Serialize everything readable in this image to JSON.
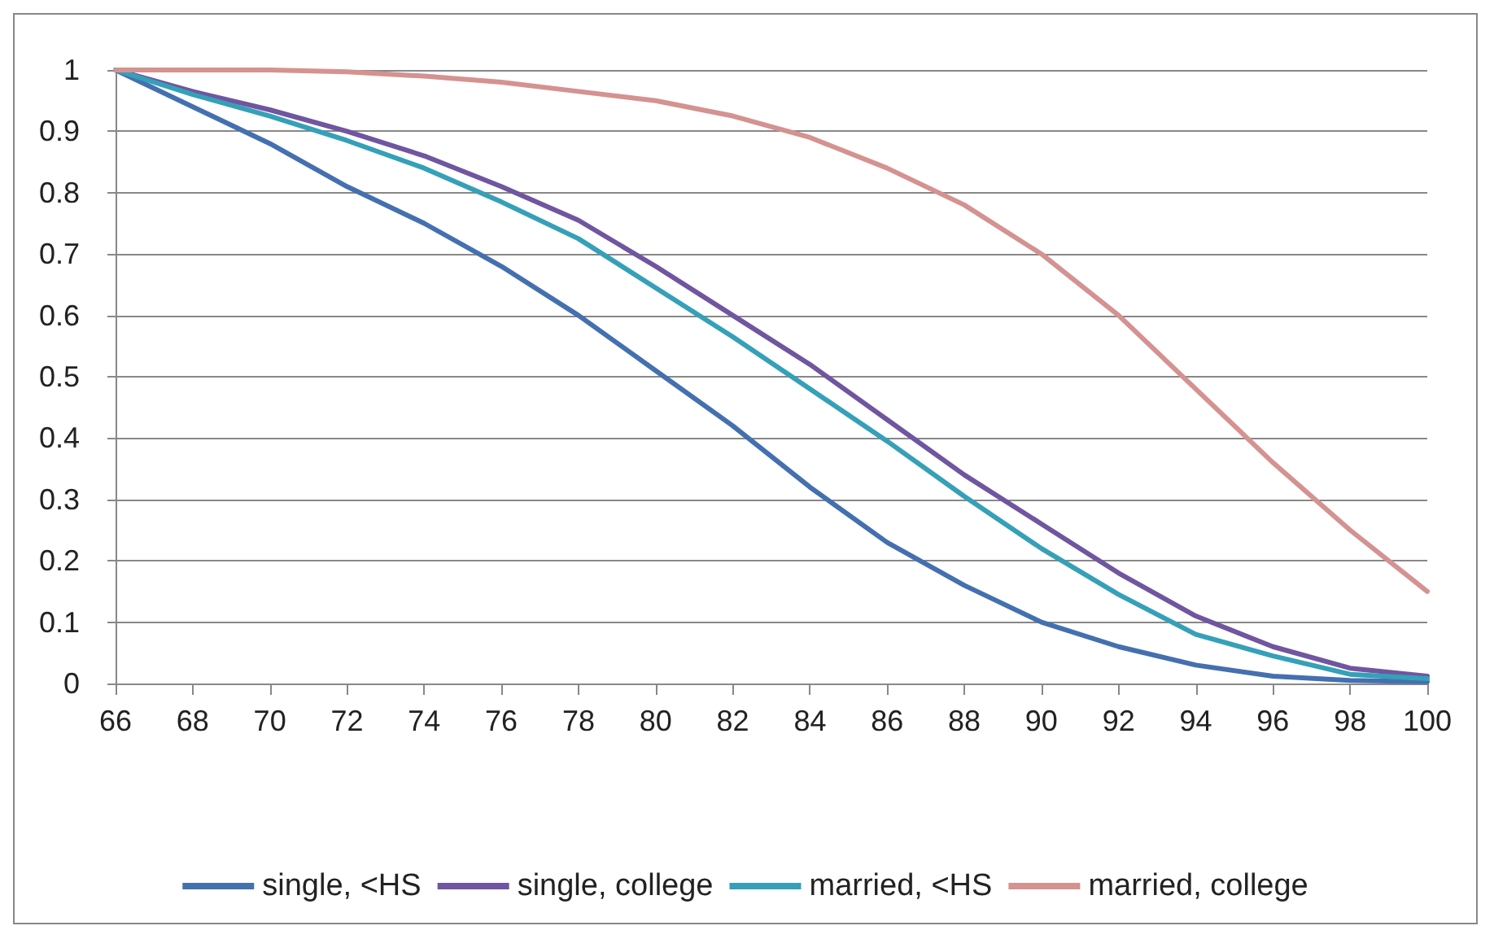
{
  "chart_data": {
    "type": "line",
    "x": [
      66,
      68,
      70,
      72,
      74,
      76,
      78,
      80,
      82,
      84,
      86,
      88,
      90,
      92,
      94,
      96,
      98,
      100
    ],
    "series": [
      {
        "name": "single, <HS",
        "color": "#4470b0",
        "values": [
          1,
          0.94,
          0.88,
          0.81,
          0.75,
          0.68,
          0.6,
          0.51,
          0.42,
          0.32,
          0.23,
          0.16,
          0.1,
          0.06,
          0.03,
          0.012,
          0.005,
          0.003
        ]
      },
      {
        "name": "single, college",
        "color": "#7055a0",
        "values": [
          1,
          0.965,
          0.935,
          0.9,
          0.86,
          0.81,
          0.755,
          0.68,
          0.6,
          0.52,
          0.43,
          0.34,
          0.26,
          0.18,
          0.11,
          0.06,
          0.025,
          0.012
        ]
      },
      {
        "name": "married, <HS",
        "color": "#35a0b8",
        "values": [
          1,
          0.96,
          0.925,
          0.885,
          0.84,
          0.785,
          0.725,
          0.645,
          0.565,
          0.48,
          0.395,
          0.305,
          0.22,
          0.145,
          0.08,
          0.045,
          0.015,
          0.008
        ]
      },
      {
        "name": "married, college",
        "color": "#d49290",
        "values": [
          1,
          1,
          1,
          0.997,
          0.99,
          0.98,
          0.965,
          0.95,
          0.925,
          0.89,
          0.84,
          0.78,
          0.7,
          0.6,
          0.48,
          0.36,
          0.25,
          0.15
        ]
      }
    ],
    "xlim": [
      66,
      100
    ],
    "xticks": [
      66,
      68,
      70,
      72,
      74,
      76,
      78,
      80,
      82,
      84,
      86,
      88,
      90,
      92,
      94,
      96,
      98,
      100
    ],
    "ylim": [
      0,
      1
    ],
    "yticks": [
      0,
      0.1,
      0.2,
      0.3,
      0.4,
      0.5,
      0.6,
      0.7,
      0.8,
      0.9,
      1
    ],
    "grid": "y",
    "legend": "bottom",
    "marker": "none",
    "line_style": "solid"
  }
}
